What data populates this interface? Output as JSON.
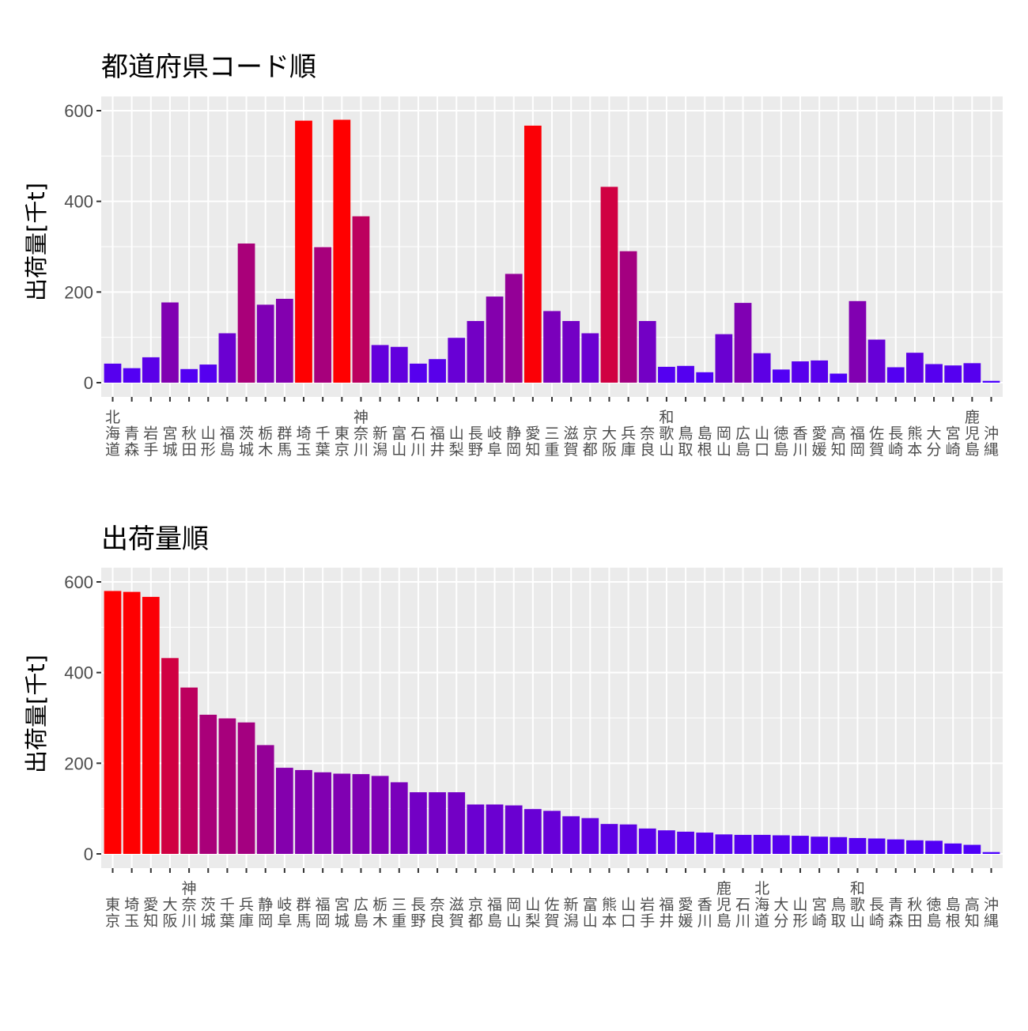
{
  "chart_data": [
    {
      "type": "bar",
      "title": "都道府県コード順",
      "ylabel": "出荷量[千t]",
      "xlabel": "",
      "ylim": [
        0,
        600
      ],
      "yticks": [
        0,
        200,
        400,
        600
      ],
      "grid": true,
      "legend": "none",
      "color_low": "#4a00ff",
      "color_high": "#ff0000",
      "categories": [
        "北海道",
        "青森",
        "岩手",
        "宮城",
        "秋田",
        "山形",
        "福島",
        "茨城",
        "栃木",
        "群馬",
        "埼玉",
        "千葉",
        "東京",
        "神奈川",
        "新潟",
        "富山",
        "石川",
        "福井",
        "山梨",
        "長野",
        "岐阜",
        "静岡",
        "愛知",
        "三重",
        "滋賀",
        "京都",
        "大阪",
        "兵庫",
        "奈良",
        "和歌山",
        "鳥取",
        "島根",
        "岡山",
        "広島",
        "山口",
        "徳島",
        "香川",
        "愛媛",
        "高知",
        "福岡",
        "佐賀",
        "長崎",
        "熊本",
        "大分",
        "宮崎",
        "鹿児島",
        "沖縄"
      ],
      "values": [
        42,
        32,
        56,
        177,
        30,
        40,
        109,
        307,
        172,
        185,
        578,
        299,
        580,
        367,
        83,
        79,
        42,
        52,
        99,
        136,
        190,
        240,
        567,
        158,
        136,
        109,
        432,
        290,
        136,
        35,
        37,
        23,
        107,
        176,
        65,
        29,
        47,
        49,
        20,
        180,
        95,
        34,
        66,
        41,
        38,
        43,
        4
      ]
    },
    {
      "type": "bar",
      "title": "出荷量順",
      "ylabel": "出荷量[千t]",
      "xlabel": "",
      "ylim": [
        0,
        600
      ],
      "yticks": [
        0,
        200,
        400,
        600
      ],
      "grid": true,
      "legend": "none",
      "color_low": "#4a00ff",
      "color_high": "#ff0000",
      "categories": [
        "東京",
        "埼玉",
        "愛知",
        "大阪",
        "神奈川",
        "茨城",
        "千葉",
        "兵庫",
        "静岡",
        "岐阜",
        "群馬",
        "福岡",
        "宮城",
        "広島",
        "栃木",
        "三重",
        "長野",
        "奈良",
        "滋賀",
        "京都",
        "福島",
        "岡山",
        "山梨",
        "佐賀",
        "新潟",
        "富山",
        "熊本",
        "山口",
        "岩手",
        "福井",
        "愛媛",
        "香川",
        "鹿児島",
        "石川",
        "北海道",
        "大分",
        "山形",
        "宮崎",
        "鳥取",
        "和歌山",
        "長崎",
        "青森",
        "秋田",
        "徳島",
        "島根",
        "高知",
        "沖縄"
      ],
      "values": [
        580,
        578,
        567,
        432,
        367,
        307,
        299,
        290,
        240,
        190,
        185,
        180,
        177,
        176,
        172,
        158,
        136,
        136,
        136,
        109,
        109,
        107,
        99,
        95,
        83,
        79,
        66,
        65,
        56,
        52,
        49,
        47,
        43,
        42,
        42,
        41,
        40,
        38,
        37,
        35,
        34,
        32,
        30,
        29,
        23,
        20,
        4
      ]
    }
  ]
}
